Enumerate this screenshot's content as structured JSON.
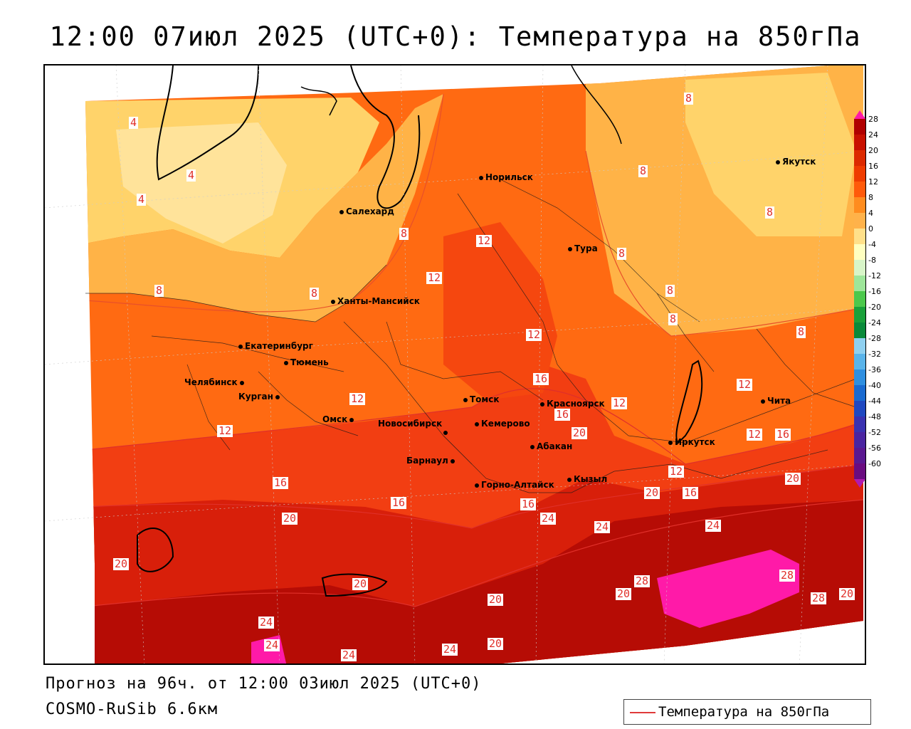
{
  "title": "12:00 07июл 2025 (UTC+0): Температура на 850гПа",
  "footer": {
    "forecast": "Прогноз на 96ч. от 12:00 03июл 2025 (UTC+0)",
    "model": "COSMO-RuSib 6.6км"
  },
  "legend": {
    "label": "Температура на 850гПа",
    "line_color": "#e03a3a"
  },
  "colorbar": {
    "labels": [
      "28",
      "24",
      "20",
      "16",
      "12",
      "8",
      "4",
      "0",
      "-4",
      "-8",
      "-12",
      "-16",
      "-20",
      "-24",
      "-28",
      "-32",
      "-36",
      "-40",
      "-44",
      "-48",
      "-52",
      "-56",
      "-60"
    ],
    "colors": [
      "#b00000",
      "#c81000",
      "#dc2a00",
      "#ef3c00",
      "#ff5a0a",
      "#ff8c1e",
      "#ffb24a",
      "#ffe08a",
      "#ffffc0",
      "#d8f5c8",
      "#9ee69a",
      "#4cc84c",
      "#1aa03a",
      "#0a8a3a",
      "#8fd0f0",
      "#5ab4ea",
      "#2f8fe0",
      "#1a6ad0",
      "#1f48c0",
      "#3a32b0",
      "#4a24a0",
      "#5a1890",
      "#6a0c80"
    ],
    "top_color": "#ff1aa8",
    "bottom_color": "#b01ab0"
  },
  "cities": [
    {
      "name": "Норильск"
    },
    {
      "name": "Якутск"
    },
    {
      "name": "Салехард"
    },
    {
      "name": "Тура"
    },
    {
      "name": "Ханты-Мансийск"
    },
    {
      "name": "Екатеринбург"
    },
    {
      "name": "Тюмень"
    },
    {
      "name": "Челябинск"
    },
    {
      "name": "Курган"
    },
    {
      "name": "Омск"
    },
    {
      "name": "Томск"
    },
    {
      "name": "Новосибирск"
    },
    {
      "name": "Кемерово"
    },
    {
      "name": "Красноярск"
    },
    {
      "name": "Абакан"
    },
    {
      "name": "Барнаул"
    },
    {
      "name": "Горно-Алтайск"
    },
    {
      "name": "Кызыл"
    },
    {
      "name": "Иркутск"
    },
    {
      "name": "Чита"
    }
  ],
  "isotherm_labels": [
    "4",
    "4",
    "4",
    "8",
    "8",
    "8",
    "8",
    "8",
    "8",
    "8",
    "8",
    "8",
    "8",
    "12",
    "12",
    "12",
    "12",
    "12",
    "12",
    "12",
    "12",
    "12",
    "16",
    "16",
    "16",
    "16",
    "16",
    "16",
    "16",
    "20",
    "20",
    "20",
    "20",
    "20",
    "20",
    "20",
    "20",
    "20",
    "20",
    "24",
    "24",
    "24",
    "24",
    "24",
    "24",
    "24",
    "28",
    "28",
    "28"
  ]
}
